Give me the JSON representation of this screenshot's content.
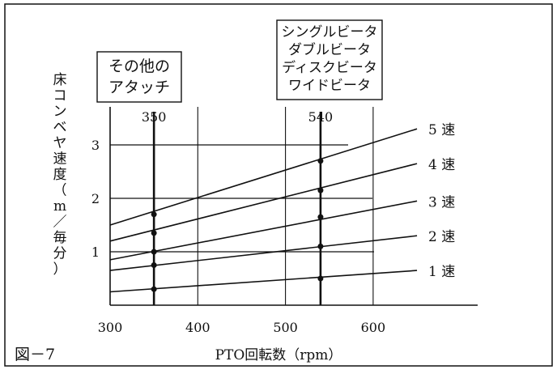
{
  "chart_data": {
    "type": "line",
    "figure_label": "図－7",
    "xlabel": "PTO回転数（rpm）",
    "ylabel": "床コンベヤ速度（m／毎分）",
    "xlim": [
      300,
      650
    ],
    "ylim": [
      0,
      3.5
    ],
    "x_ticks": [
      300,
      400,
      500,
      600
    ],
    "y_ticks": [
      1,
      2,
      3
    ],
    "grid": true,
    "reference_lines": [
      {
        "x": 350,
        "label": "350",
        "note_lines": [
          "その他の",
          "アタッチ"
        ]
      },
      {
        "x": 540,
        "label": "540",
        "note_lines": [
          "シングルビータ",
          "ダブルビータ",
          "ディスクビータ",
          "ワイドビータ"
        ]
      }
    ],
    "series": [
      {
        "name": "1 速",
        "x": [
          300,
          350,
          540,
          650
        ],
        "y": [
          0.25,
          0.3,
          0.5,
          0.65
        ]
      },
      {
        "name": "2 速",
        "x": [
          300,
          350,
          540,
          650
        ],
        "y": [
          0.65,
          0.75,
          1.1,
          1.3
        ]
      },
      {
        "name": "3 速",
        "x": [
          300,
          350,
          540,
          650
        ],
        "y": [
          0.85,
          1.0,
          1.65,
          1.95
        ]
      },
      {
        "name": "4 速",
        "x": [
          300,
          350,
          540,
          650
        ],
        "y": [
          1.2,
          1.35,
          2.15,
          2.65
        ]
      },
      {
        "name": "5 速",
        "x": [
          300,
          350,
          540,
          650
        ],
        "y": [
          1.5,
          1.7,
          2.7,
          3.3
        ]
      }
    ]
  }
}
